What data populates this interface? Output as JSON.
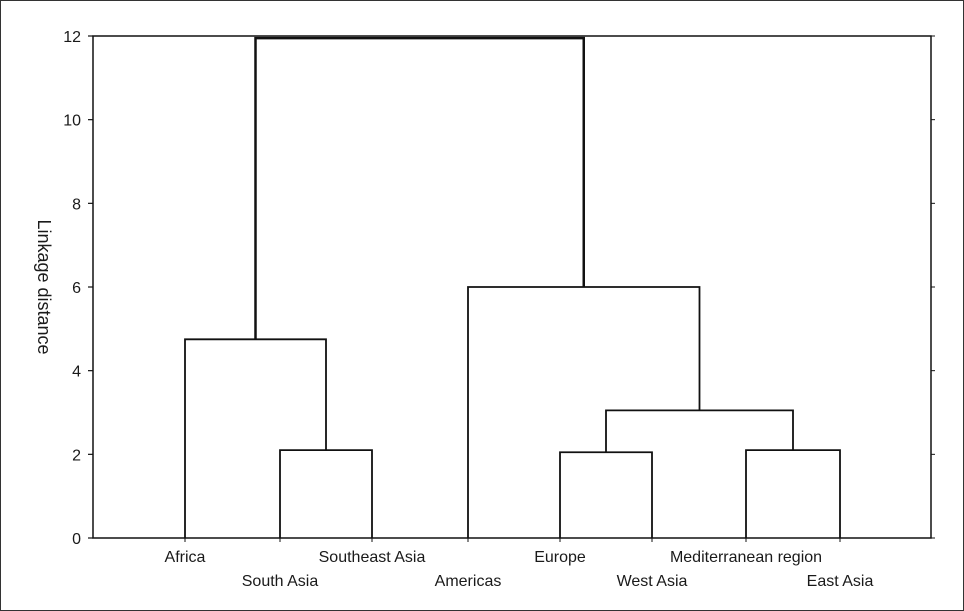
{
  "chart_data": {
    "type": "dendrogram",
    "ylabel": "Linkage distance",
    "ylim": [
      0,
      12
    ],
    "yticks": [
      0,
      2,
      4,
      6,
      8,
      10,
      12
    ],
    "leaves": [
      "Africa",
      "South Asia",
      "Southeast Asia",
      "Americas",
      "Europe",
      "West Asia",
      "Mediterranean region",
      "East Asia"
    ],
    "merges": [
      {
        "left": "South Asia",
        "right": "Southeast Asia",
        "height": 2.1
      },
      {
        "left": "Africa",
        "right": "South Asia + Southeast Asia",
        "height": 4.75
      },
      {
        "left": "Europe",
        "right": "West Asia",
        "height": 2.05
      },
      {
        "left": "Mediterranean region",
        "right": "East Asia",
        "height": 2.1
      },
      {
        "left": "Europe + West Asia",
        "right": "Mediterranean region + East Asia",
        "height": 3.05
      },
      {
        "left": "Americas",
        "right": "Europe + West Asia + Mediterranean region + East Asia",
        "height": 6.0
      },
      {
        "left": "Africa + South Asia + Southeast Asia",
        "right": "Americas + Europe + West Asia + Mediterranean region + East Asia",
        "height": 11.95
      }
    ],
    "grid": false
  }
}
